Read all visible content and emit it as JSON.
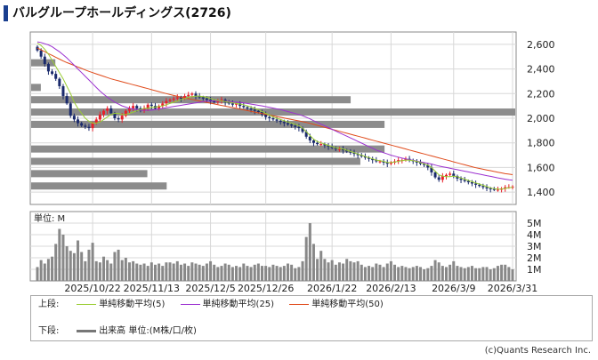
{
  "title": "バルグループホールディングス(2726)",
  "copyright": "(c)Quants Research Inc.",
  "legend": {
    "upper_label": "上段:",
    "lower_label": "下段:",
    "ma5": "単純移動平均(5)",
    "ma25": "単純移動平均(25)",
    "ma50": "単純移動平均(50)",
    "volume": "出来高 単位:(M株/口/枚)"
  },
  "colors": {
    "up": "#e8202a",
    "down": "#1a2a6c",
    "ma5": "#9acd32",
    "ma25": "#9b30d0",
    "ma50": "#e04a1a",
    "volume": "#888888",
    "volume_profile": "#8c8c8c"
  },
  "chart_data": [
    {
      "type": "candlestick",
      "ylim": [
        1300,
        2700
      ],
      "yticks": [
        1400,
        1600,
        1800,
        2000,
        2200,
        2400,
        2600
      ],
      "ytick_labels": [
        "1,400",
        "1,600",
        "1,800",
        "2,000",
        "2,200",
        "2,400",
        "2,600"
      ],
      "xtick_labels": [
        "2025/10/22",
        "2025/11/13",
        "2025/12/5",
        "2025/12/26",
        "2026/1/22",
        "2026/2/13",
        "2026/3/9",
        "2026/3/31"
      ],
      "xtick_index": [
        15,
        31,
        47,
        62,
        80,
        96,
        113,
        129
      ],
      "grid": true,
      "close": [
        2550,
        2500,
        2440,
        2380,
        2360,
        2320,
        2260,
        2180,
        2120,
        2020,
        1990,
        1960,
        1940,
        1930,
        1920,
        1960,
        1990,
        2030,
        2060,
        2080,
        2040,
        2000,
        1990,
        2020,
        2060,
        2080,
        2100,
        2080,
        2060,
        2080,
        2110,
        2100,
        2080,
        2100,
        2120,
        2140,
        2150,
        2160,
        2170,
        2160,
        2180,
        2190,
        2200,
        2180,
        2170,
        2160,
        2150,
        2140,
        2130,
        2140,
        2150,
        2130,
        2120,
        2110,
        2120,
        2100,
        2090,
        2080,
        2070,
        2060,
        2050,
        2030,
        2010,
        2000,
        1990,
        1980,
        1970,
        1960,
        1950,
        1940,
        1930,
        1920,
        1890,
        1850,
        1820,
        1800,
        1790,
        1790,
        1780,
        1770,
        1760,
        1750,
        1750,
        1740,
        1730,
        1720,
        1710,
        1700,
        1690,
        1680,
        1670,
        1660,
        1650,
        1650,
        1640,
        1630,
        1640,
        1650,
        1660,
        1660,
        1670,
        1660,
        1650,
        1640,
        1630,
        1620,
        1600,
        1560,
        1520,
        1500,
        1530,
        1540,
        1550,
        1530,
        1510,
        1500,
        1490,
        1480,
        1470,
        1460,
        1450,
        1440,
        1430,
        1425,
        1420,
        1420,
        1430,
        1440,
        1440,
        1445
      ],
      "ma5": [
        2610,
        2590,
        2560,
        2520,
        2470,
        2420,
        2370,
        2320,
        2260,
        2200,
        2130,
        2080,
        2040,
        2000,
        1975,
        1960,
        1960,
        1970,
        1990,
        2010,
        2030,
        2040,
        2040,
        2030,
        2030,
        2040,
        2050,
        2060,
        2070,
        2080,
        2080,
        2090,
        2090,
        2095,
        2100,
        2110,
        2120,
        2130,
        2140,
        2150,
        2160,
        2170,
        2175,
        2180,
        2180,
        2175,
        2170,
        2160,
        2150,
        2145,
        2140,
        2135,
        2130,
        2125,
        2120,
        2115,
        2110,
        2100,
        2090,
        2080,
        2070,
        2055,
        2040,
        2025,
        2010,
        2000,
        1990,
        1980,
        1970,
        1960,
        1950,
        1940,
        1920,
        1890,
        1860,
        1830,
        1810,
        1800,
        1790,
        1780,
        1770,
        1760,
        1755,
        1750,
        1740,
        1730,
        1720,
        1710,
        1700,
        1690,
        1680,
        1670,
        1660,
        1655,
        1650,
        1640,
        1640,
        1645,
        1650,
        1655,
        1660,
        1660,
        1655,
        1650,
        1640,
        1630,
        1620,
        1600,
        1570,
        1540,
        1530,
        1525,
        1525,
        1530,
        1525,
        1515,
        1505,
        1495,
        1485,
        1475,
        1465,
        1455,
        1445,
        1435,
        1428,
        1425,
        1425,
        1430,
        1435,
        1440
      ],
      "ma25": [
        2620,
        2615,
        2605,
        2595,
        2580,
        2560,
        2540,
        2515,
        2490,
        2460,
        2430,
        2400,
        2370,
        2340,
        2310,
        2280,
        2250,
        2220,
        2195,
        2170,
        2150,
        2130,
        2115,
        2100,
        2090,
        2080,
        2075,
        2070,
        2065,
        2065,
        2065,
        2065,
        2070,
        2075,
        2080,
        2085,
        2090,
        2095,
        2100,
        2105,
        2110,
        2115,
        2120,
        2125,
        2130,
        2135,
        2138,
        2140,
        2140,
        2140,
        2140,
        2138,
        2135,
        2132,
        2130,
        2128,
        2125,
        2120,
        2115,
        2110,
        2105,
        2100,
        2094,
        2088,
        2082,
        2076,
        2070,
        2062,
        2054,
        2046,
        2038,
        2030,
        2020,
        2008,
        1995,
        1980,
        1966,
        1952,
        1938,
        1924,
        1910,
        1896,
        1882,
        1868,
        1854,
        1840,
        1826,
        1812,
        1798,
        1784,
        1770,
        1756,
        1742,
        1730,
        1720,
        1710,
        1700,
        1692,
        1684,
        1676,
        1670,
        1664,
        1658,
        1652,
        1646,
        1640,
        1634,
        1628,
        1620,
        1612,
        1606,
        1600,
        1594,
        1588,
        1582,
        1576,
        1570,
        1564,
        1558,
        1552,
        1546,
        1540,
        1534,
        1528,
        1522,
        1516,
        1510,
        1505,
        1500,
        1496
      ],
      "ma50": [
        2570,
        2555,
        2540,
        2525,
        2510,
        2495,
        2480,
        2465,
        2452,
        2440,
        2428,
        2416,
        2404,
        2392,
        2380,
        2370,
        2360,
        2350,
        2340,
        2330,
        2320,
        2312,
        2304,
        2296,
        2288,
        2280,
        2272,
        2264,
        2256,
        2248,
        2240,
        2232,
        2224,
        2216,
        2208,
        2200,
        2192,
        2185,
        2178,
        2171,
        2164,
        2158,
        2152,
        2146,
        2140,
        2134,
        2128,
        2122,
        2116,
        2110,
        2104,
        2098,
        2092,
        2086,
        2080,
        2074,
        2068,
        2062,
        2056,
        2050,
        2044,
        2038,
        2032,
        2026,
        2020,
        2014,
        2008,
        2002,
        1996,
        1990,
        1984,
        1978,
        1972,
        1966,
        1958,
        1950,
        1942,
        1934,
        1926,
        1918,
        1910,
        1902,
        1894,
        1886,
        1878,
        1870,
        1862,
        1854,
        1846,
        1838,
        1830,
        1822,
        1814,
        1806,
        1798,
        1790,
        1782,
        1774,
        1766,
        1758,
        1750,
        1742,
        1734,
        1726,
        1718,
        1710,
        1702,
        1694,
        1686,
        1678,
        1670,
        1662,
        1654,
        1646,
        1638,
        1630,
        1622,
        1614,
        1606,
        1598,
        1592,
        1586,
        1580,
        1574,
        1568,
        1562,
        1556,
        1550,
        1546,
        1542
      ],
      "volume_profile": [
        {
          "price": 2450,
          "volume": 0.05
        },
        {
          "price": 2250,
          "volume": 0.02
        },
        {
          "price": 2150,
          "volume": 0.66
        },
        {
          "price": 2050,
          "volume": 1.0
        },
        {
          "price": 1950,
          "volume": 0.73
        },
        {
          "price": 1750,
          "volume": 0.73
        },
        {
          "price": 1650,
          "volume": 0.68
        },
        {
          "price": 1550,
          "volume": 0.24
        },
        {
          "price": 1450,
          "volume": 0.28
        }
      ]
    },
    {
      "type": "bar",
      "ylabel": "単位: M",
      "ylim": [
        0,
        6
      ],
      "yticks": [
        1,
        2,
        3,
        4,
        5
      ],
      "ytick_labels": [
        "1M",
        "2M",
        "3M",
        "4M",
        "5M"
      ],
      "values": [
        1.2,
        1.8,
        1.5,
        1.9,
        2.1,
        3.2,
        4.5,
        4.0,
        3.0,
        2.6,
        2.4,
        3.5,
        2.5,
        1.7,
        2.7,
        3.3,
        1.7,
        1.6,
        2.1,
        1.8,
        1.5,
        2.5,
        2.7,
        1.8,
        2.0,
        1.6,
        1.7,
        1.5,
        1.4,
        1.5,
        1.3,
        1.6,
        1.4,
        1.5,
        1.3,
        1.6,
        1.6,
        1.5,
        1.7,
        1.4,
        1.5,
        1.3,
        1.6,
        1.5,
        1.4,
        1.3,
        1.5,
        1.7,
        1.4,
        1.2,
        1.3,
        1.5,
        1.4,
        1.2,
        1.3,
        1.2,
        1.5,
        1.3,
        1.2,
        1.4,
        1.5,
        1.3,
        1.3,
        1.2,
        1.4,
        1.3,
        1.2,
        1.3,
        1.5,
        1.4,
        1.1,
        1.2,
        1.7,
        3.8,
        5.0,
        3.2,
        1.9,
        2.6,
        1.9,
        1.6,
        1.8,
        1.4,
        1.6,
        1.5,
        1.9,
        1.7,
        1.6,
        1.7,
        1.4,
        1.2,
        1.3,
        1.2,
        1.5,
        1.4,
        1.2,
        1.5,
        1.7,
        1.4,
        1.2,
        1.3,
        1.2,
        1.1,
        1.2,
        1.3,
        1.2,
        1.0,
        1.1,
        1.3,
        1.8,
        1.6,
        1.3,
        1.2,
        1.4,
        1.7,
        1.3,
        1.2,
        1.1,
        1.2,
        1.3,
        1.1,
        1.1,
        1.2,
        1.2,
        1.0,
        1.1,
        1.3,
        1.4,
        1.4,
        1.2,
        1.0
      ]
    }
  ]
}
